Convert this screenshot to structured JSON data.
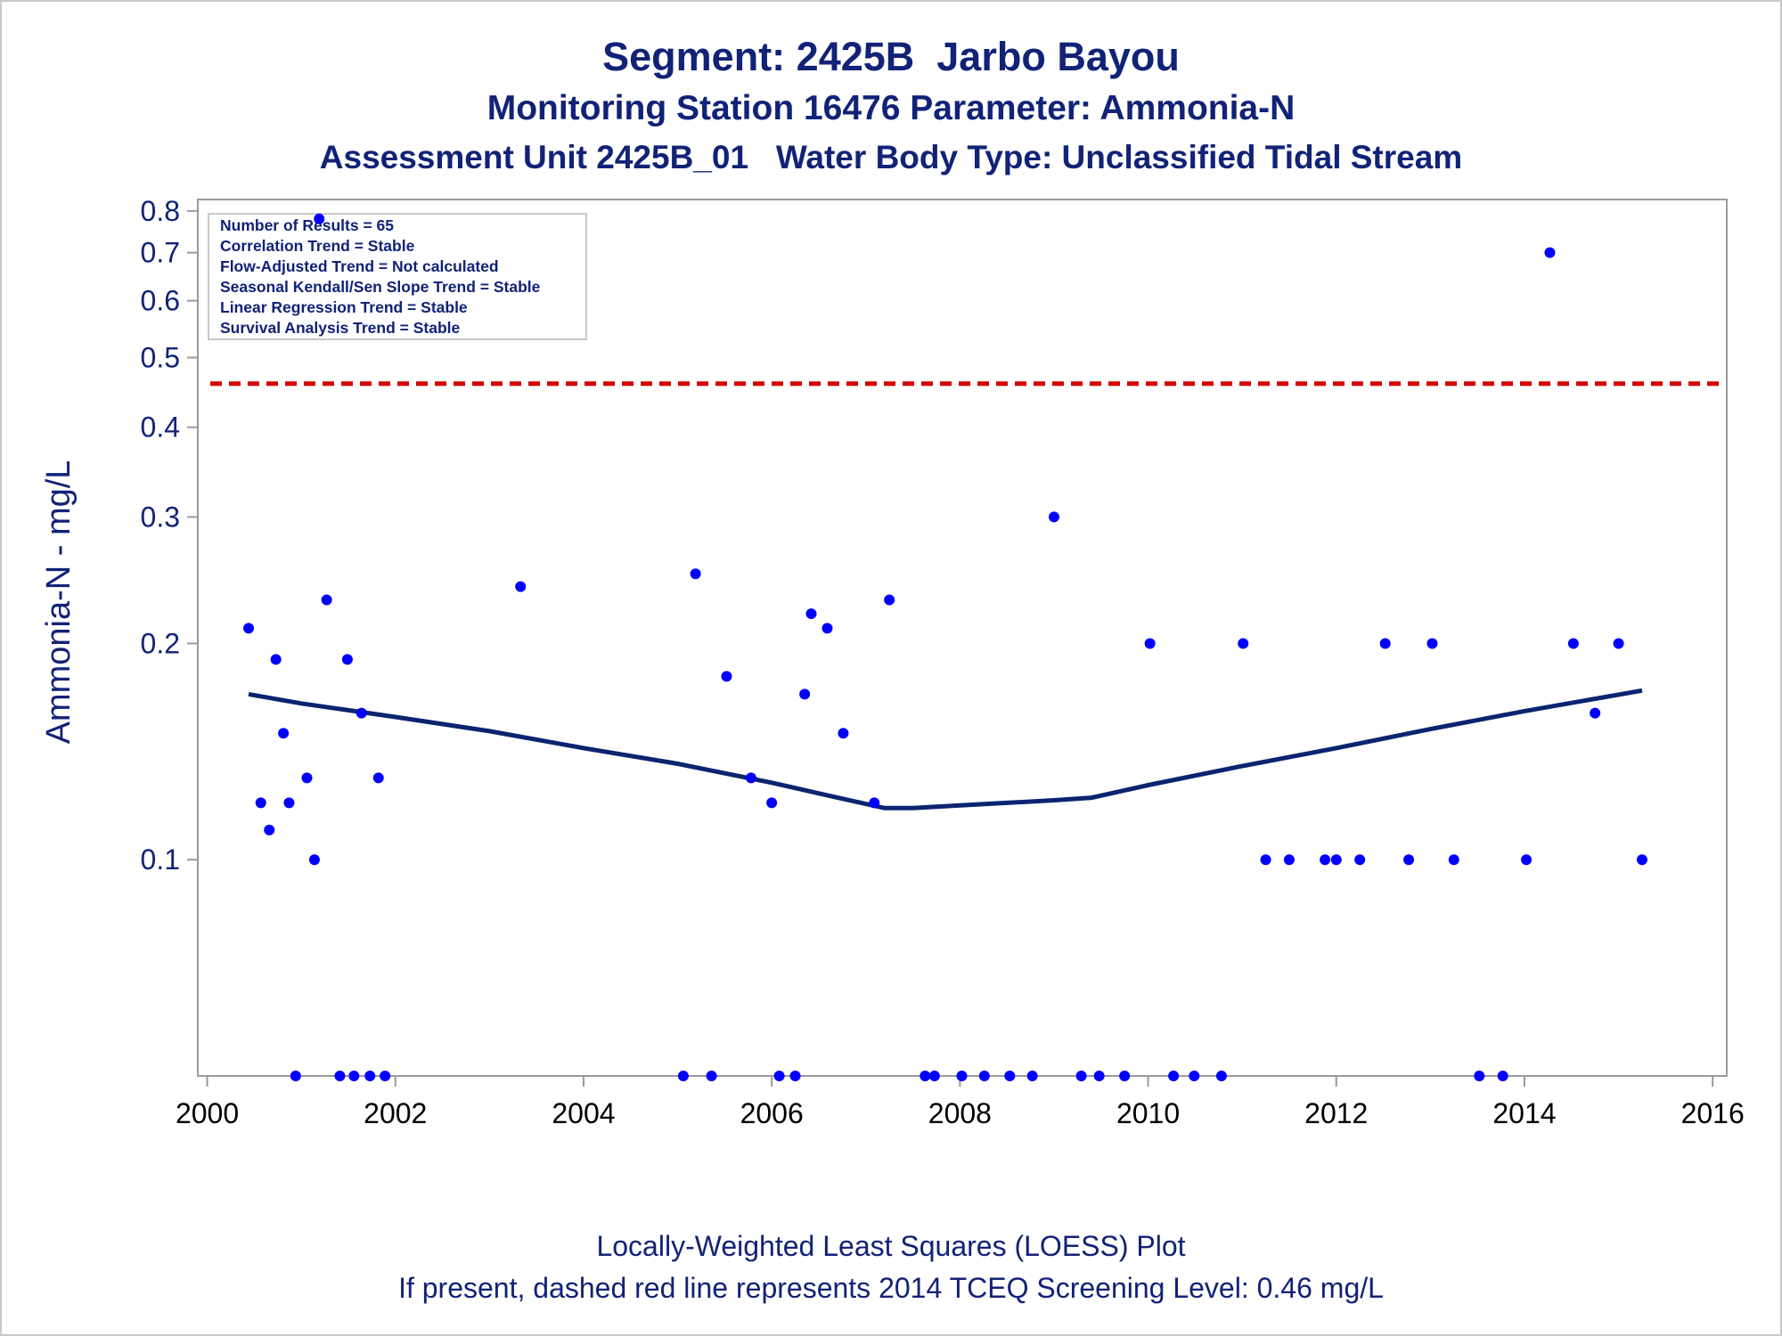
{
  "title": "Segment: 2425B  Jarbo Bayou",
  "subtitle": "Monitoring Station 16476 Parameter: Ammonia-N",
  "subtitle2": "Assessment Unit 2425B_01   Water Body Type: Unclassified Tidal Stream",
  "footnote1": "Locally-Weighted Least Squares (LOESS) Plot",
  "footnote2": "If present, dashed red line represents 2014 TCEQ Screening Level: 0.46 mg/L",
  "colors": {
    "text": "#112277",
    "points": "#0000ff",
    "loess": "#0a2470",
    "screening": "#d40000",
    "axis": "#9a9a9a"
  },
  "chart_data": {
    "type": "scatter",
    "xlabel": "",
    "ylabel": "Ammonia-N - mg/L",
    "y_scale": "log",
    "xlim": [
      1999.9,
      2016.15
    ],
    "ylim": [
      0.05,
      0.83
    ],
    "x_ticks": [
      2000,
      2002,
      2004,
      2006,
      2008,
      2010,
      2012,
      2014,
      2016
    ],
    "x_tick_labels": [
      "2000",
      "2002",
      "2004",
      "2006",
      "2008",
      "2010",
      "2012",
      "2014",
      "2016"
    ],
    "y_ticks": [
      0.1,
      0.2,
      0.3,
      0.4,
      0.5,
      0.6,
      0.7,
      0.8
    ],
    "y_tick_labels": [
      "0.1",
      "0.2",
      "0.3",
      "0.4",
      "0.5",
      "0.6",
      "0.7",
      "0.8"
    ],
    "grid": false,
    "screening_level": 0.46,
    "legend_position": "top-left",
    "stats": [
      "Number of Results = 65",
      "Correlation Trend = Stable",
      "Flow-Adjusted Trend = Not calculated",
      "Seasonal Kendall/Sen Slope Trend = Stable",
      "Linear Regression Trend = Stable",
      "Survival Analysis Trend = Stable"
    ],
    "points": [
      {
        "x": 2000.44,
        "y": 0.21
      },
      {
        "x": 2000.57,
        "y": 0.12
      },
      {
        "x": 2000.66,
        "y": 0.11
      },
      {
        "x": 2000.73,
        "y": 0.19
      },
      {
        "x": 2000.81,
        "y": 0.15
      },
      {
        "x": 2000.87,
        "y": 0.12
      },
      {
        "x": 2000.94,
        "y": 0.05
      },
      {
        "x": 2001.06,
        "y": 0.13
      },
      {
        "x": 2001.14,
        "y": 0.1
      },
      {
        "x": 2001.19,
        "y": 0.78
      },
      {
        "x": 2001.27,
        "y": 0.23
      },
      {
        "x": 2001.41,
        "y": 0.05
      },
      {
        "x": 2001.49,
        "y": 0.19
      },
      {
        "x": 2001.56,
        "y": 0.05
      },
      {
        "x": 2001.64,
        "y": 0.16
      },
      {
        "x": 2001.73,
        "y": 0.05
      },
      {
        "x": 2001.82,
        "y": 0.13
      },
      {
        "x": 2001.89,
        "y": 0.05
      },
      {
        "x": 2003.33,
        "y": 0.24
      },
      {
        "x": 2005.06,
        "y": 0.05
      },
      {
        "x": 2005.19,
        "y": 0.25
      },
      {
        "x": 2005.36,
        "y": 0.05
      },
      {
        "x": 2005.52,
        "y": 0.18
      },
      {
        "x": 2005.78,
        "y": 0.13
      },
      {
        "x": 2006.0,
        "y": 0.12
      },
      {
        "x": 2006.08,
        "y": 0.05
      },
      {
        "x": 2006.25,
        "y": 0.05
      },
      {
        "x": 2006.35,
        "y": 0.17
      },
      {
        "x": 2006.42,
        "y": 0.22
      },
      {
        "x": 2006.59,
        "y": 0.21
      },
      {
        "x": 2006.76,
        "y": 0.15
      },
      {
        "x": 2007.09,
        "y": 0.12
      },
      {
        "x": 2007.25,
        "y": 0.23
      },
      {
        "x": 2007.63,
        "y": 0.05
      },
      {
        "x": 2007.73,
        "y": 0.05
      },
      {
        "x": 2008.02,
        "y": 0.05
      },
      {
        "x": 2008.26,
        "y": 0.05
      },
      {
        "x": 2008.53,
        "y": 0.05
      },
      {
        "x": 2008.77,
        "y": 0.05
      },
      {
        "x": 2009.0,
        "y": 0.3
      },
      {
        "x": 2009.29,
        "y": 0.05
      },
      {
        "x": 2009.48,
        "y": 0.05
      },
      {
        "x": 2009.75,
        "y": 0.05
      },
      {
        "x": 2010.02,
        "y": 0.2
      },
      {
        "x": 2010.27,
        "y": 0.05
      },
      {
        "x": 2010.49,
        "y": 0.05
      },
      {
        "x": 2010.78,
        "y": 0.05
      },
      {
        "x": 2011.01,
        "y": 0.2
      },
      {
        "x": 2011.25,
        "y": 0.1
      },
      {
        "x": 2011.5,
        "y": 0.1
      },
      {
        "x": 2011.88,
        "y": 0.1
      },
      {
        "x": 2012.0,
        "y": 0.1
      },
      {
        "x": 2012.25,
        "y": 0.1
      },
      {
        "x": 2012.52,
        "y": 0.2
      },
      {
        "x": 2012.77,
        "y": 0.1
      },
      {
        "x": 2013.02,
        "y": 0.2
      },
      {
        "x": 2013.25,
        "y": 0.1
      },
      {
        "x": 2013.52,
        "y": 0.05
      },
      {
        "x": 2013.77,
        "y": 0.05
      },
      {
        "x": 2014.02,
        "y": 0.1
      },
      {
        "x": 2014.27,
        "y": 0.7
      },
      {
        "x": 2014.52,
        "y": 0.2
      },
      {
        "x": 2014.75,
        "y": 0.16
      },
      {
        "x": 2015.0,
        "y": 0.2
      },
      {
        "x": 2015.25,
        "y": 0.1
      }
    ],
    "loess": [
      {
        "x": 2000.44,
        "y": 0.17
      },
      {
        "x": 2001.0,
        "y": 0.165
      },
      {
        "x": 2002.0,
        "y": 0.158
      },
      {
        "x": 2003.0,
        "y": 0.151
      },
      {
        "x": 2004.0,
        "y": 0.143
      },
      {
        "x": 2005.0,
        "y": 0.136
      },
      {
        "x": 2006.0,
        "y": 0.128
      },
      {
        "x": 2006.7,
        "y": 0.122
      },
      {
        "x": 2007.2,
        "y": 0.118
      },
      {
        "x": 2007.5,
        "y": 0.118
      },
      {
        "x": 2008.0,
        "y": 0.119
      },
      {
        "x": 2008.5,
        "y": 0.12
      },
      {
        "x": 2009.0,
        "y": 0.121
      },
      {
        "x": 2009.4,
        "y": 0.122
      },
      {
        "x": 2010.0,
        "y": 0.127
      },
      {
        "x": 2011.0,
        "y": 0.135
      },
      {
        "x": 2012.0,
        "y": 0.143
      },
      {
        "x": 2013.0,
        "y": 0.152
      },
      {
        "x": 2014.0,
        "y": 0.161
      },
      {
        "x": 2015.25,
        "y": 0.172
      }
    ]
  }
}
